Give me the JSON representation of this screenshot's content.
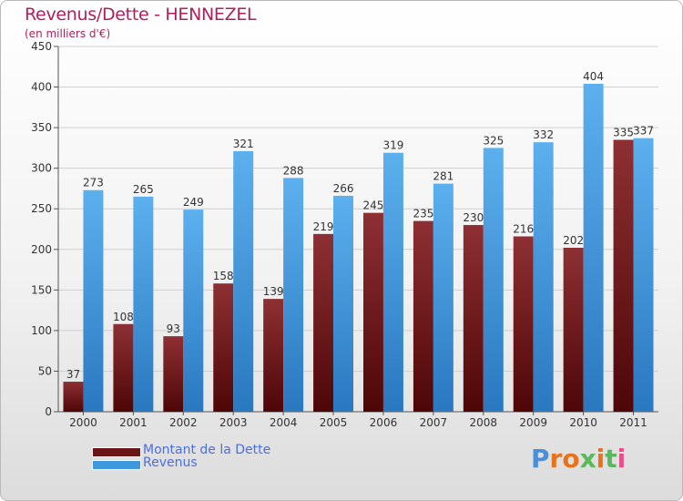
{
  "title": "Revenus/Dette - HENNEZEL",
  "subtitle": "(en milliers d'€)",
  "logo_text": "Proxiti",
  "logo_colors": [
    "#4a90d9",
    "#e8731d",
    "#e8731d",
    "#5cb85c",
    "#e8731d",
    "#5cb85c",
    "#e84e8a"
  ],
  "legend": [
    {
      "label": "Montant de la Dette",
      "color": "#6b1416"
    },
    {
      "label": "Revenus",
      "color": "#3d98de"
    }
  ],
  "chart_data": {
    "type": "bar",
    "categories": [
      "2000",
      "2001",
      "2002",
      "2003",
      "2004",
      "2005",
      "2006",
      "2007",
      "2008",
      "2009",
      "2010",
      "2011"
    ],
    "series": [
      {
        "name": "Montant de la Dette",
        "values": [
          37,
          108,
          93,
          158,
          139,
          219,
          245,
          235,
          230,
          216,
          202,
          335
        ],
        "color": "#6b1416"
      },
      {
        "name": "Revenus",
        "values": [
          273,
          265,
          249,
          321,
          288,
          266,
          319,
          281,
          325,
          332,
          404,
          337
        ],
        "color": "#3d98de"
      }
    ],
    "ylim": [
      0,
      450
    ],
    "yticks": [
      0,
      50,
      100,
      150,
      200,
      250,
      300,
      350,
      400,
      450
    ],
    "grid": true
  }
}
